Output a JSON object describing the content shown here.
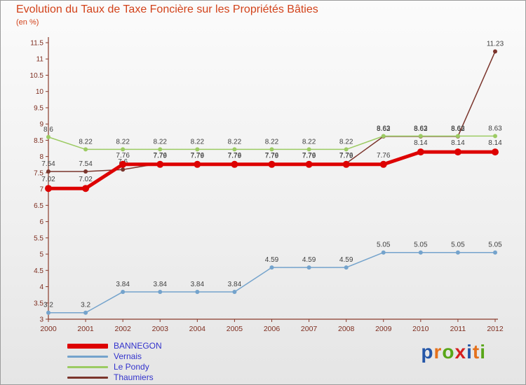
{
  "title": "Evolution du Taux de Taxe Foncière sur les Propriétés Bâties",
  "subtitle": "(en %)",
  "colors": {
    "title": "#d2421a",
    "axis": "#8a3b2b",
    "tick_label": "#7d2c1e",
    "value_label": "#3f3f3f",
    "legend_text": "#3333cc"
  },
  "chart_data": {
    "type": "line",
    "x": [
      2000,
      2001,
      2002,
      2003,
      2004,
      2005,
      2006,
      2007,
      2008,
      2009,
      2010,
      2011,
      2012
    ],
    "ylim": [
      3,
      11.5
    ],
    "ytick_step": 0.5,
    "grid": false,
    "legend_position": "bottom-left",
    "title": "Evolution du Taux de Taxe Foncière sur les Propriétés Bâties",
    "ylabel": "en %",
    "series": [
      {
        "name": "BANNEGON",
        "color": "#dd0202",
        "stroke_width": 5,
        "marker_r": 5,
        "values": [
          7.02,
          7.02,
          7.76,
          7.76,
          7.76,
          7.76,
          7.76,
          7.76,
          7.76,
          7.76,
          8.14,
          8.14,
          8.14
        ]
      },
      {
        "name": "Vernais",
        "color": "#74a3cc",
        "stroke_width": 1.5,
        "marker_r": 3,
        "values": [
          3.2,
          3.2,
          3.84,
          3.84,
          3.84,
          3.84,
          4.59,
          4.59,
          4.59,
          5.05,
          5.05,
          5.05,
          5.05
        ]
      },
      {
        "name": "Le Pondy",
        "color": "#9ccb63",
        "stroke_width": 1.5,
        "marker_r": 3,
        "values": [
          8.6,
          8.22,
          8.22,
          8.22,
          8.22,
          8.22,
          8.22,
          8.22,
          8.22,
          8.63,
          8.63,
          8.63,
          8.63
        ]
      },
      {
        "name": "Thaumiers",
        "color": "#7b352c",
        "stroke_width": 1.5,
        "marker_r": 3,
        "values": [
          7.54,
          7.54,
          7.6,
          7.79,
          7.79,
          7.79,
          7.79,
          7.79,
          7.79,
          8.62,
          8.62,
          8.62,
          11.23
        ]
      }
    ]
  },
  "legend": [
    {
      "label": "BANNEGON",
      "color": "#dd0202",
      "thick": true
    },
    {
      "label": "Vernais",
      "color": "#74a3cc",
      "thick": false
    },
    {
      "label": "Le Pondy",
      "color": "#9ccb63",
      "thick": false
    },
    {
      "label": "Thaumiers",
      "color": "#7b352c",
      "thick": false
    }
  ],
  "logo": {
    "name": "proxiti",
    "letters": [
      {
        "ch": "p",
        "color": "#2456a8"
      },
      {
        "ch": "r",
        "color": "#e4711c"
      },
      {
        "ch": "o",
        "color": "#58a618"
      },
      {
        "ch": "x",
        "color": "#d51f1f"
      },
      {
        "ch": "i",
        "color": "#2456a8"
      },
      {
        "ch": "t",
        "color": "#e4711c"
      },
      {
        "ch": "i",
        "color": "#58a618"
      }
    ]
  }
}
